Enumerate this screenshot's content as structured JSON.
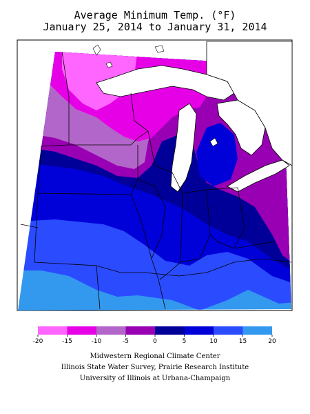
{
  "title_line1": "Average Minimum Temp. (°F)",
  "title_line2": "January 25, 2014 to January 31, 2014",
  "legend": {
    "bins": [
      {
        "from": -20,
        "to": -15,
        "color": "#ff66ff"
      },
      {
        "from": -15,
        "to": -10,
        "color": "#e600e6"
      },
      {
        "from": -10,
        "to": -5,
        "color": "#b366c9"
      },
      {
        "from": -5,
        "to": 0,
        "color": "#9900b3"
      },
      {
        "from": 0,
        "to": 5,
        "color": "#000099"
      },
      {
        "from": 5,
        "to": 10,
        "color": "#0000d9"
      },
      {
        "from": 10,
        "to": 15,
        "color": "#2b4bff"
      },
      {
        "from": 15,
        "to": 20,
        "color": "#3399ee"
      }
    ],
    "tick_labels": [
      "-20",
      "-15",
      "-10",
      "-5",
      "0",
      "5",
      "10",
      "15",
      "20"
    ]
  },
  "credits": [
    "Midwestern Regional Climate Center",
    "Illinois State Water Survey, Prairie Research Institute",
    "University of Illinois at Urbana-Champaign"
  ]
}
